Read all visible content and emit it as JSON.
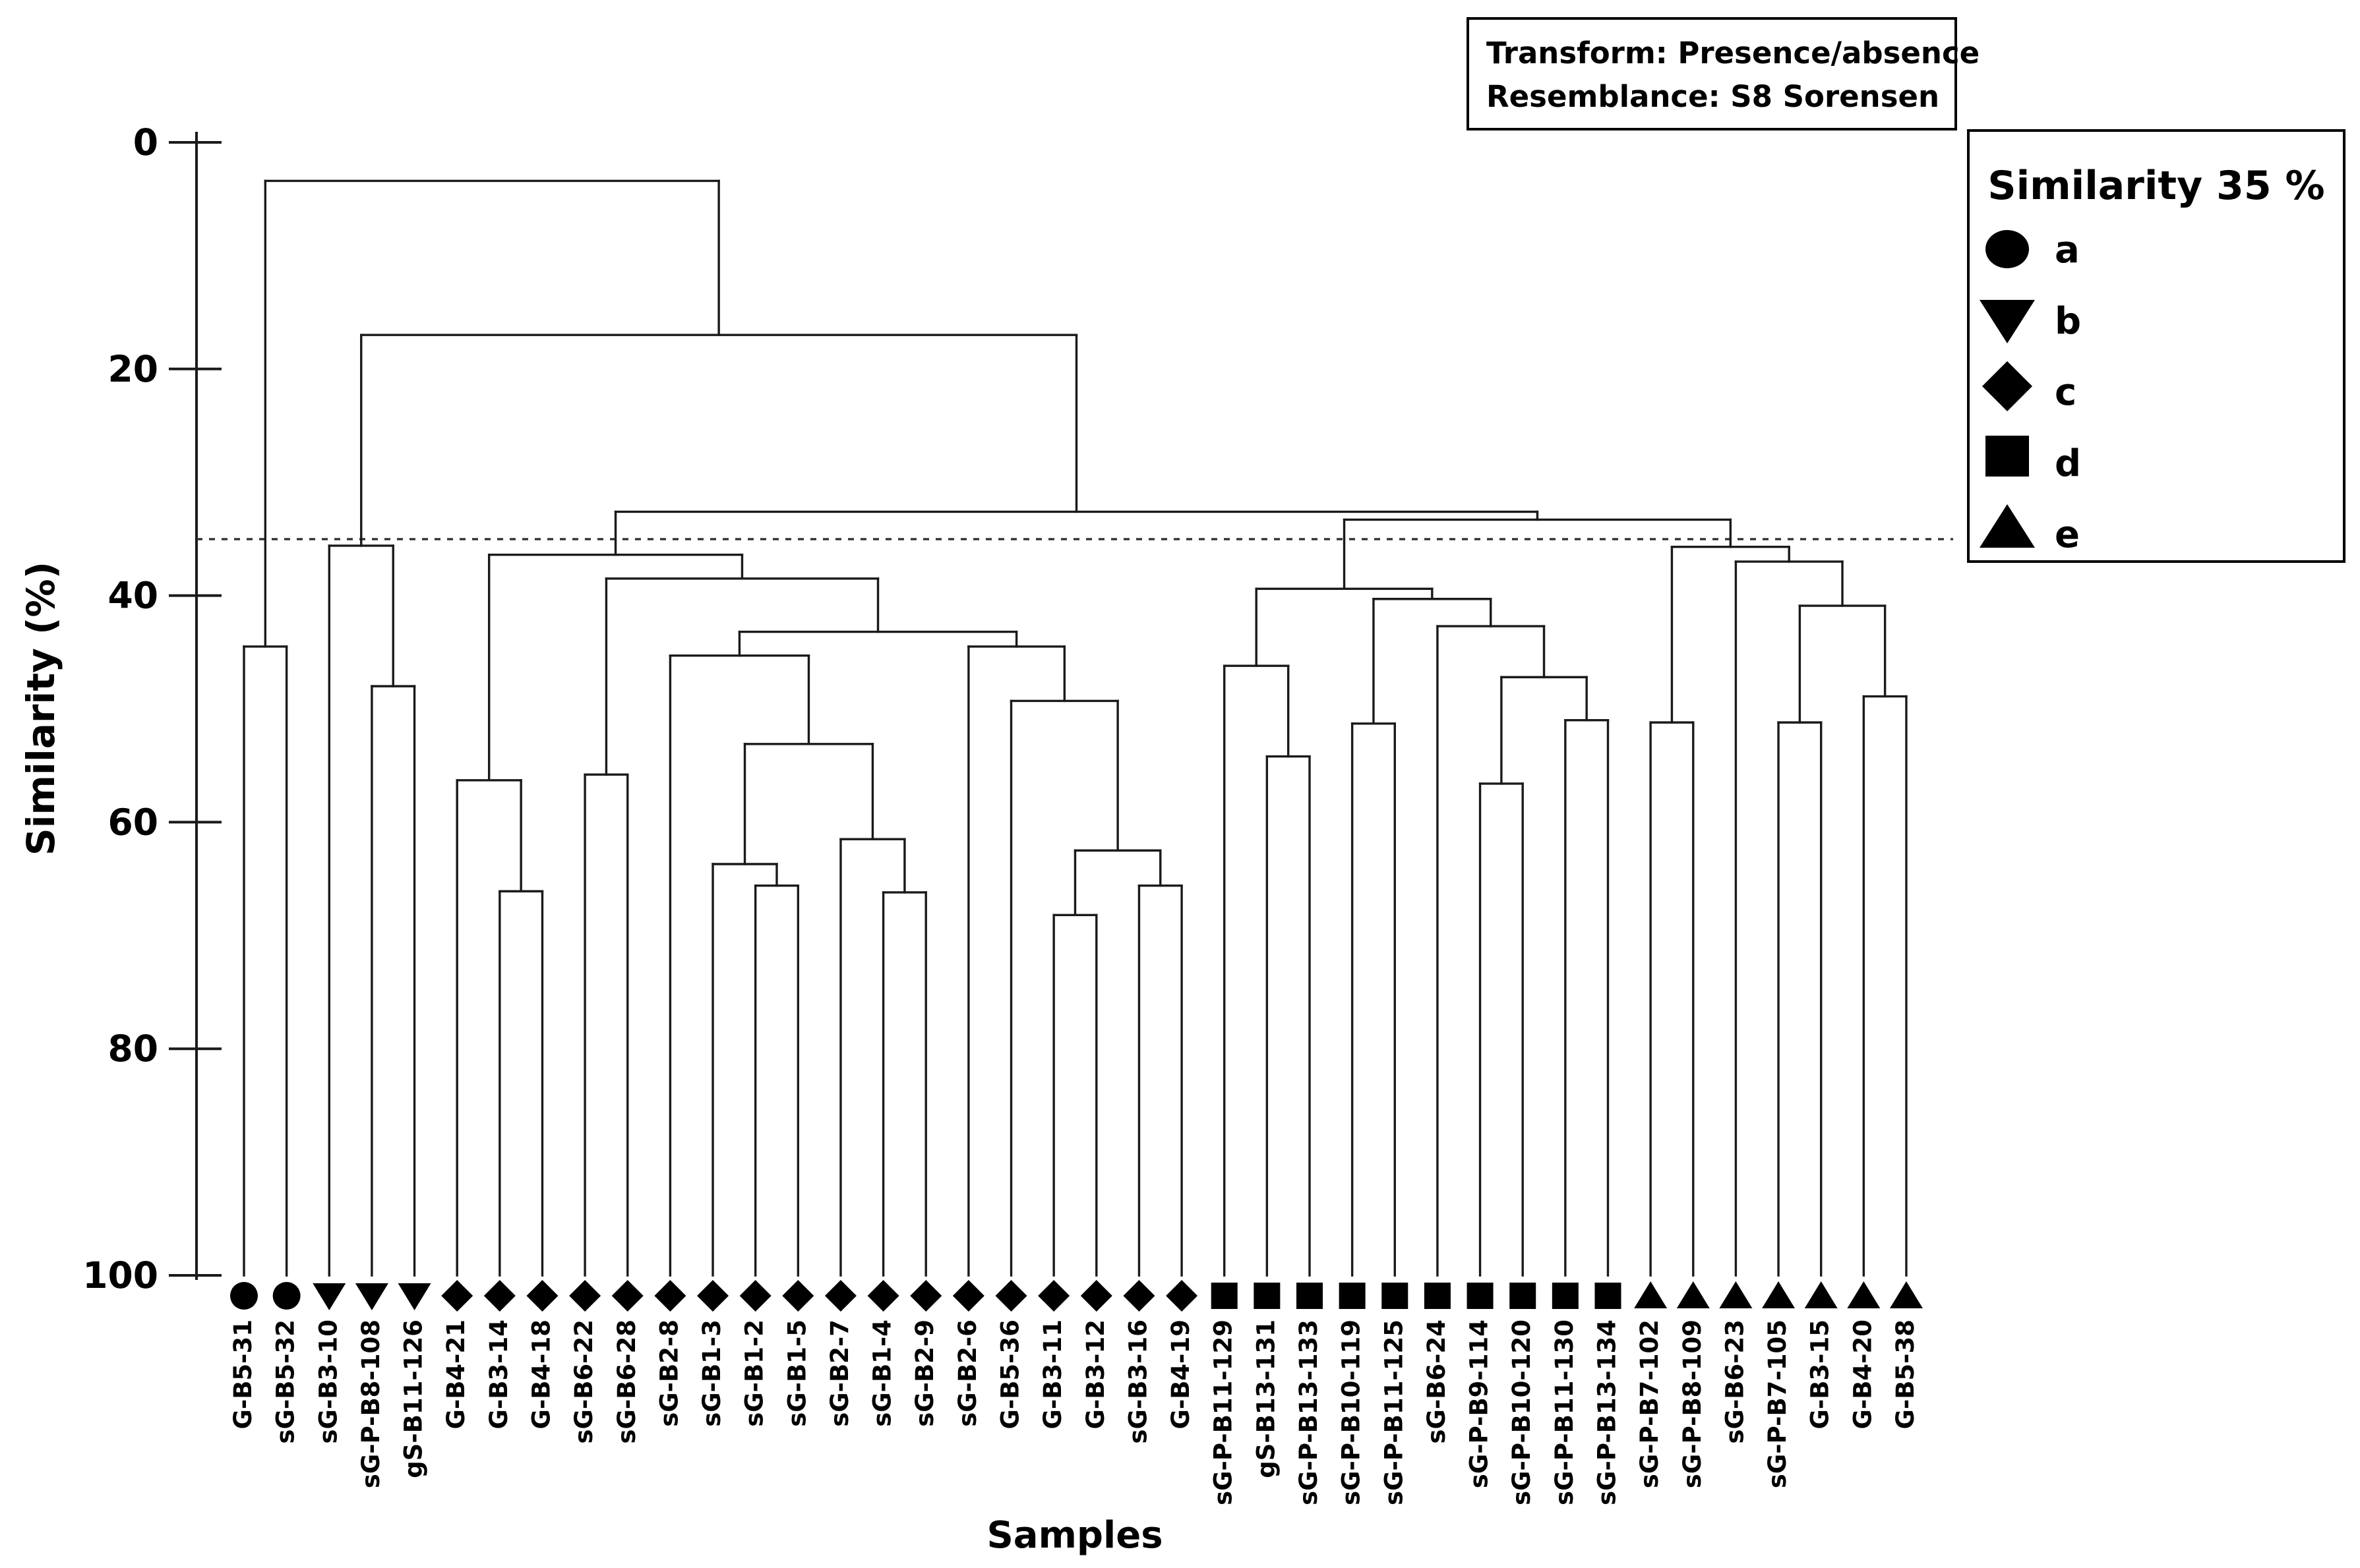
{
  "meta_box": {
    "line1": "Transform: Presence/absence",
    "line2": "Resemblance: S8 Sorensen"
  },
  "legend": {
    "title": "Similarity 35 %",
    "items": [
      {
        "symbol": "circle",
        "label": "a"
      },
      {
        "symbol": "triangle-down",
        "label": "b"
      },
      {
        "symbol": "diamond",
        "label": "c"
      },
      {
        "symbol": "square",
        "label": "d"
      },
      {
        "symbol": "triangle-up",
        "label": "e"
      }
    ]
  },
  "axes": {
    "y_label": "Similarity (%)",
    "x_label": "Samples",
    "y_ticks": [
      0,
      20,
      40,
      60,
      80,
      100
    ]
  },
  "threshold": {
    "value": 35,
    "style": "dashed"
  },
  "colors": {
    "line": "#1a1a1a",
    "text": "#000000",
    "background": "#ffffff",
    "marker": "#000000"
  },
  "chart_data": {
    "type": "dendrogram",
    "title": "",
    "orientation": "top-down",
    "ylabel": "Similarity (%)",
    "xlabel": "Samples",
    "ylim": [
      0,
      100
    ],
    "y_axis_inverted": true,
    "cut_line_percent": 35,
    "samples": [
      {
        "name": "G-B5-31",
        "group": "a",
        "symbol": "circle"
      },
      {
        "name": "sG-B5-32",
        "group": "a",
        "symbol": "circle"
      },
      {
        "name": "sG-B3-10",
        "group": "b",
        "symbol": "triangle-down"
      },
      {
        "name": "sG-P-B8-108",
        "group": "b",
        "symbol": "triangle-down"
      },
      {
        "name": "gS-B11-126",
        "group": "b",
        "symbol": "triangle-down"
      },
      {
        "name": "G-B4-21",
        "group": "c",
        "symbol": "diamond"
      },
      {
        "name": "G-B3-14",
        "group": "c",
        "symbol": "diamond"
      },
      {
        "name": "G-B4-18",
        "group": "c",
        "symbol": "diamond"
      },
      {
        "name": "sG-B6-22",
        "group": "c",
        "symbol": "diamond"
      },
      {
        "name": "sG-B6-28",
        "group": "c",
        "symbol": "diamond"
      },
      {
        "name": "sG-B2-8",
        "group": "c",
        "symbol": "diamond"
      },
      {
        "name": "sG-B1-3",
        "group": "c",
        "symbol": "diamond"
      },
      {
        "name": "sG-B1-2",
        "group": "c",
        "symbol": "diamond"
      },
      {
        "name": "sG-B1-5",
        "group": "c",
        "symbol": "diamond"
      },
      {
        "name": "sG-B2-7",
        "group": "c",
        "symbol": "diamond"
      },
      {
        "name": "sG-B1-4",
        "group": "c",
        "symbol": "diamond"
      },
      {
        "name": "sG-B2-9",
        "group": "c",
        "symbol": "diamond"
      },
      {
        "name": "sG-B2-6",
        "group": "c",
        "symbol": "diamond"
      },
      {
        "name": "G-B5-36",
        "group": "c",
        "symbol": "diamond"
      },
      {
        "name": "G-B3-11",
        "group": "c",
        "symbol": "diamond"
      },
      {
        "name": "G-B3-12",
        "group": "c",
        "symbol": "diamond"
      },
      {
        "name": "sG-B3-16",
        "group": "c",
        "symbol": "diamond"
      },
      {
        "name": "G-B4-19",
        "group": "c",
        "symbol": "diamond"
      },
      {
        "name": "sG-P-B11-129",
        "group": "d",
        "symbol": "square"
      },
      {
        "name": "gS-B13-131",
        "group": "d",
        "symbol": "square"
      },
      {
        "name": "sG-P-B13-133",
        "group": "d",
        "symbol": "square"
      },
      {
        "name": "sG-P-B10-119",
        "group": "d",
        "symbol": "square"
      },
      {
        "name": "sG-P-B11-125",
        "group": "d",
        "symbol": "square"
      },
      {
        "name": "sG-B6-24",
        "group": "d",
        "symbol": "square"
      },
      {
        "name": "sG-P-B9-114",
        "group": "d",
        "symbol": "square"
      },
      {
        "name": "sG-P-B10-120",
        "group": "d",
        "symbol": "square"
      },
      {
        "name": "sG-P-B11-130",
        "group": "d",
        "symbol": "square"
      },
      {
        "name": "sG-P-B13-134",
        "group": "d",
        "symbol": "square"
      },
      {
        "name": "sG-P-B7-102",
        "group": "e",
        "symbol": "triangle-up"
      },
      {
        "name": "sG-P-B8-109",
        "group": "e",
        "symbol": "triangle-up"
      },
      {
        "name": "sG-B6-23",
        "group": "e",
        "symbol": "triangle-up"
      },
      {
        "name": "sG-P-B7-105",
        "group": "e",
        "symbol": "triangle-up"
      },
      {
        "name": "G-B3-15",
        "group": "e",
        "symbol": "triangle-up"
      },
      {
        "name": "G-B4-20",
        "group": "e",
        "symbol": "triangle-up"
      },
      {
        "name": "G-B5-38",
        "group": "e",
        "symbol": "triangle-up"
      }
    ],
    "linkage_note": "h = merge similarity in %; nested children left-to-right match sample order",
    "linkage": {
      "h": 3.4,
      "c": [
        {
          "h": 44.5,
          "c": [
            {
              "s": "G-B5-31"
            },
            {
              "s": "sG-B5-32"
            }
          ]
        },
        {
          "h": 17.0,
          "c": [
            {
              "h": 35.6,
              "c": [
                {
                  "s": "sG-B3-10"
                },
                {
                  "h": 48.0,
                  "c": [
                    {
                      "s": "sG-P-B8-108"
                    },
                    {
                      "s": "gS-B11-126"
                    }
                  ]
                }
              ]
            },
            {
              "h": 32.6,
              "c": [
                {
                  "h": 36.4,
                  "c": [
                    {
                      "h": 56.3,
                      "c": [
                        {
                          "s": "G-B4-21"
                        },
                        {
                          "h": 66.1,
                          "c": [
                            {
                              "s": "G-B3-14"
                            },
                            {
                              "s": "G-B4-18"
                            }
                          ]
                        }
                      ]
                    },
                    {
                      "h": 38.5,
                      "c": [
                        {
                          "h": 55.8,
                          "c": [
                            {
                              "s": "sG-B6-22"
                            },
                            {
                              "s": "sG-B6-28"
                            }
                          ]
                        },
                        {
                          "h": 43.2,
                          "c": [
                            {
                              "h": 45.3,
                              "c": [
                                {
                                  "s": "sG-B2-8"
                                },
                                {
                                  "h": 53.1,
                                  "c": [
                                    {
                                      "h": 63.7,
                                      "c": [
                                        {
                                          "s": "sG-B1-3"
                                        },
                                        {
                                          "h": 65.6,
                                          "c": [
                                            {
                                              "s": "sG-B1-2"
                                            },
                                            {
                                              "s": "sG-B1-5"
                                            }
                                          ]
                                        }
                                      ]
                                    },
                                    {
                                      "h": 61.5,
                                      "c": [
                                        {
                                          "s": "sG-B2-7"
                                        },
                                        {
                                          "h": 66.2,
                                          "c": [
                                            {
                                              "s": "sG-B1-4"
                                            },
                                            {
                                              "s": "sG-B2-9"
                                            }
                                          ]
                                        }
                                      ]
                                    }
                                  ]
                                }
                              ]
                            },
                            {
                              "h": 44.5,
                              "c": [
                                {
                                  "s": "sG-B2-6"
                                },
                                {
                                  "h": 49.3,
                                  "c": [
                                    {
                                      "s": "G-B5-36"
                                    },
                                    {
                                      "h": 62.5,
                                      "c": [
                                        {
                                          "h": 68.2,
                                          "c": [
                                            {
                                              "s": "G-B3-11"
                                            },
                                            {
                                              "s": "G-B3-12"
                                            }
                                          ]
                                        },
                                        {
                                          "h": 65.6,
                                          "c": [
                                            {
                                              "s": "sG-B3-16"
                                            },
                                            {
                                              "s": "G-B4-19"
                                            }
                                          ]
                                        }
                                      ]
                                    }
                                  ]
                                }
                              ]
                            }
                          ]
                        }
                      ]
                    }
                  ]
                },
                {
                  "h": 33.3,
                  "c": [
                    {
                      "h": 39.4,
                      "c": [
                        {
                          "h": 46.2,
                          "c": [
                            {
                              "s": "sG-P-B11-129"
                            },
                            {
                              "h": 54.2,
                              "c": [
                                {
                                  "s": "gS-B13-131"
                                },
                                {
                                  "s": "sG-P-B13-133"
                                }
                              ]
                            }
                          ]
                        },
                        {
                          "h": 40.3,
                          "c": [
                            {
                              "h": 51.3,
                              "c": [
                                {
                                  "s": "sG-P-B10-119"
                                },
                                {
                                  "s": "sG-P-B11-125"
                                }
                              ]
                            },
                            {
                              "h": 42.7,
                              "c": [
                                {
                                  "s": "sG-B6-24"
                                },
                                {
                                  "h": 47.2,
                                  "c": [
                                    {
                                      "h": 56.6,
                                      "c": [
                                        {
                                          "s": "sG-P-B9-114"
                                        },
                                        {
                                          "s": "sG-P-B10-120"
                                        }
                                      ]
                                    },
                                    {
                                      "h": 51.0,
                                      "c": [
                                        {
                                          "s": "sG-P-B11-130"
                                        },
                                        {
                                          "s": "sG-P-B13-134"
                                        }
                                      ]
                                    }
                                  ]
                                }
                              ]
                            }
                          ]
                        }
                      ]
                    },
                    {
                      "h": 35.7,
                      "c": [
                        {
                          "h": 51.2,
                          "c": [
                            {
                              "s": "sG-P-B7-102"
                            },
                            {
                              "s": "sG-P-B8-109"
                            }
                          ]
                        },
                        {
                          "h": 37.0,
                          "c": [
                            {
                              "s": "sG-B6-23"
                            },
                            {
                              "h": 40.9,
                              "c": [
                                {
                                  "h": 51.2,
                                  "c": [
                                    {
                                      "s": "sG-P-B7-105"
                                    },
                                    {
                                      "s": "G-B3-15"
                                    }
                                  ]
                                },
                                {
                                  "h": 48.9,
                                  "c": [
                                    {
                                      "s": "G-B4-20"
                                    },
                                    {
                                      "s": "G-B5-38"
                                    }
                                  ]
                                }
                              ]
                            }
                          ]
                        }
                      ]
                    }
                  ]
                }
              ]
            }
          ]
        }
      ]
    }
  }
}
